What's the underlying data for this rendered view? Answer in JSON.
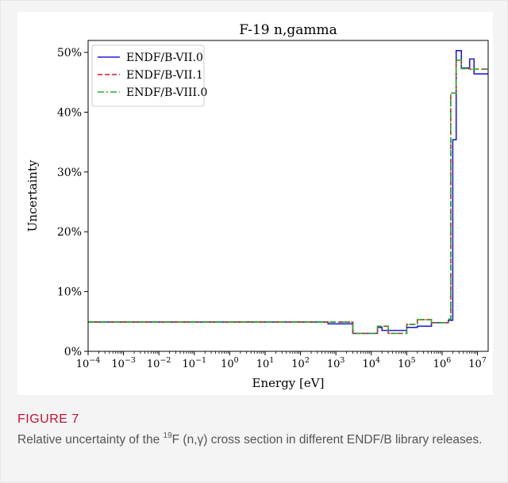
{
  "figure": {
    "label": "FIGURE 7",
    "caption_pre": "Relative uncertainty of the ",
    "caption_sup": "19",
    "caption_post": "F (n,γ) cross section in different ENDF/B library releases."
  },
  "chart_data": {
    "type": "line",
    "step": true,
    "title": "F-19 n,gamma",
    "xlabel": "Energy [eV]",
    "ylabel": "Uncertainty",
    "xscale": "log",
    "xlim": [
      0.0001,
      20000000
    ],
    "ylim": [
      0,
      0.52
    ],
    "xticks": [
      0.0001,
      0.001,
      0.01,
      0.1,
      1,
      10,
      100,
      1000,
      10000,
      100000,
      1000000,
      10000000
    ],
    "xtick_labels": [
      {
        "base": "10",
        "exp": "−4"
      },
      {
        "base": "10",
        "exp": "−3"
      },
      {
        "base": "10",
        "exp": "−2"
      },
      {
        "base": "10",
        "exp": "−1"
      },
      {
        "base": "10",
        "exp": "0"
      },
      {
        "base": "10",
        "exp": "1"
      },
      {
        "base": "10",
        "exp": "2"
      },
      {
        "base": "10",
        "exp": "3"
      },
      {
        "base": "10",
        "exp": "4"
      },
      {
        "base": "10",
        "exp": "5"
      },
      {
        "base": "10",
        "exp": "6"
      },
      {
        "base": "10",
        "exp": "7"
      }
    ],
    "yticks": [
      0,
      0.1,
      0.2,
      0.3,
      0.4,
      0.5
    ],
    "ytick_labels": [
      "0%",
      "10%",
      "20%",
      "30%",
      "40%",
      "50%"
    ],
    "grid": false,
    "legend_position": "top-left",
    "series": [
      {
        "name": "ENDF/B-VII.0",
        "color": "#1f1fd6",
        "dash": "solid",
        "x": [
          0.0001,
          600,
          2000,
          3000,
          15000,
          20000,
          50000,
          100000,
          200000,
          500000,
          1500000,
          2000000,
          2500000,
          3500000,
          6000000,
          8000000,
          20000000
        ],
        "y": [
          0.049,
          0.046,
          0.046,
          0.03,
          0.04,
          0.035,
          0.035,
          0.04,
          0.042,
          0.048,
          0.052,
          0.354,
          0.503,
          0.474,
          0.489,
          0.464,
          0.464
        ]
      },
      {
        "name": "ENDF/B-VII.1",
        "color": "#e0141e",
        "dash": "dashed",
        "x": [
          0.0001,
          1000,
          3000,
          15000,
          30000,
          100000,
          200000,
          500000,
          1500000,
          1750000,
          2500000,
          3500000,
          6000000,
          20000000
        ],
        "y": [
          0.049,
          0.049,
          0.03,
          0.042,
          0.03,
          0.045,
          0.053,
          0.048,
          0.054,
          0.432,
          0.487,
          0.473,
          0.472,
          0.472
        ]
      },
      {
        "name": "ENDF/B-VIII.0",
        "color": "#22b022",
        "dash": "dashdot",
        "x": [
          0.0001,
          1000,
          3000,
          15000,
          30000,
          100000,
          200000,
          500000,
          1500000,
          1750000,
          2500000,
          3500000,
          6000000,
          20000000
        ],
        "y": [
          0.049,
          0.049,
          0.03,
          0.042,
          0.03,
          0.045,
          0.053,
          0.048,
          0.054,
          0.432,
          0.487,
          0.473,
          0.472,
          0.472
        ]
      }
    ]
  }
}
